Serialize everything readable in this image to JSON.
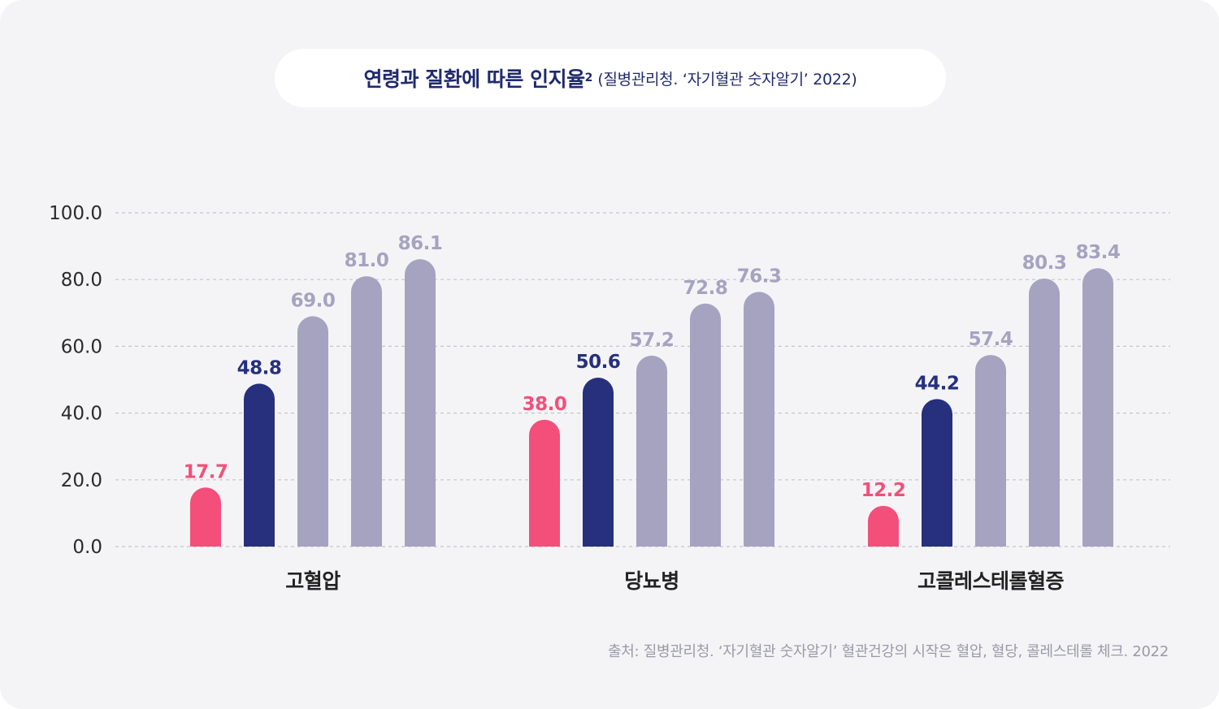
{
  "title": {
    "main": "연령과 질환에 따른 인지율",
    "superscript": "2",
    "source": "(질병관리청. ‘자기혈관 숫자알기’ 2022)"
  },
  "source_note": "출처: 질병관리청. ‘자기혈관 숫자알기’ 혈관건강의 시작은 혈압, 혈당, 콜레스테롤 체크. 2022",
  "colors": {
    "pink": "#f34f7a",
    "navy": "#26307d",
    "gray": "#a6a3c1",
    "axis_text": "#2b2b2b",
    "category_text": "#222222",
    "grid": "#c4c4cc"
  },
  "chart_data": {
    "type": "bar",
    "categories": [
      "고혈압",
      "당뇨병",
      "고콜레스테롤혈증"
    ],
    "groups": [
      {
        "values": [
          17.7,
          48.8,
          69.0,
          81.0,
          86.1
        ],
        "labels": [
          "17.7",
          "48.8",
          "69.0",
          "81.0",
          "86.1"
        ]
      },
      {
        "values": [
          38.0,
          50.6,
          57.2,
          72.8,
          76.3
        ],
        "labels": [
          "38.0",
          "50.6",
          "57.2",
          "72.8",
          "76.3"
        ]
      },
      {
        "values": [
          12.2,
          44.2,
          57.4,
          80.3,
          83.4
        ],
        "labels": [
          "12.2",
          "44.2",
          "57.4",
          "80.3",
          "83.4"
        ]
      }
    ],
    "bar_colors": [
      "pink",
      "navy",
      "gray",
      "gray",
      "gray"
    ],
    "yticks": [
      0,
      20,
      40,
      60,
      80,
      100
    ],
    "ytick_labels": [
      "0.0",
      "20.0",
      "40.0",
      "60.0",
      "80.0",
      "100.0"
    ],
    "ylim": [
      0,
      100
    ],
    "grid": true,
    "grid_style": "dashed",
    "legend": "none"
  }
}
